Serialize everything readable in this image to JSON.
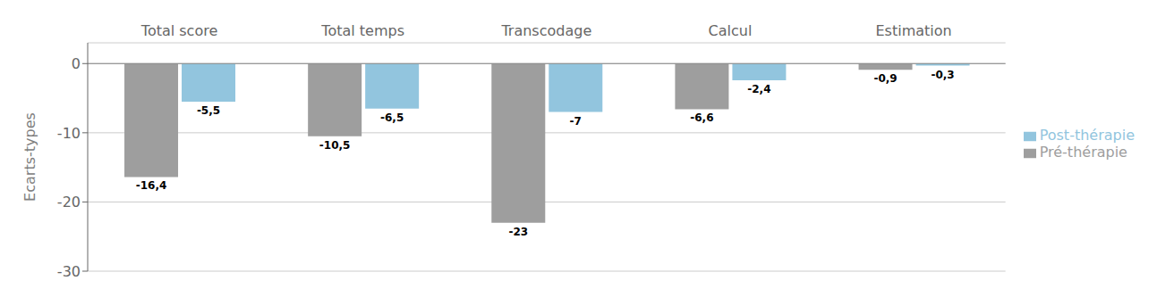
{
  "chart_data": {
    "type": "bar",
    "ylabel": "Ecarts-types",
    "categories": [
      "Total score",
      "Total temps",
      "Transcodage",
      "Calcul",
      "Estimation"
    ],
    "series": [
      {
        "name": "Pré-thérapie",
        "color": "#9e9e9e",
        "values": [
          -16.4,
          -10.5,
          -23,
          -6.6,
          -0.9
        ],
        "value_labels": [
          "-16,4",
          "-10,5",
          "-23",
          "-6,6",
          "-0,9"
        ]
      },
      {
        "name": "Post-thérapie",
        "color": "#92c5de",
        "values": [
          -5.5,
          -6.5,
          -7,
          -2.4,
          -0.3
        ],
        "value_labels": [
          "-5,5",
          "-6,5",
          "-7",
          "-2,4",
          "-0,3"
        ]
      }
    ],
    "ylim": [
      -30,
      3
    ],
    "yticks": [
      0,
      -10,
      -20,
      -30
    ],
    "grid": true,
    "data_labels": true,
    "legend": "right"
  }
}
